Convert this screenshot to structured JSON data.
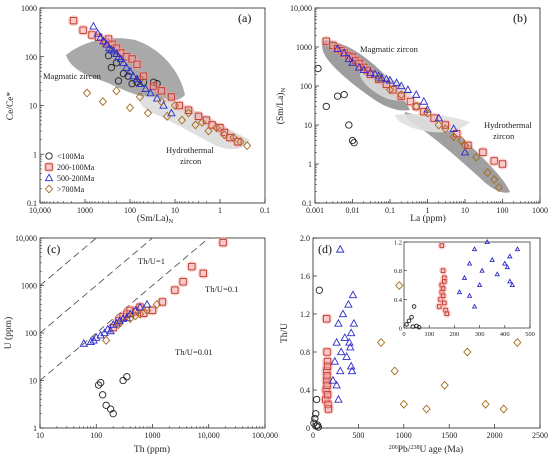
{
  "series_styles": {
    "lt100": {
      "legend": "<100Ma",
      "marker": "circle",
      "color": "#222222"
    },
    "s200_100": {
      "legend": "200-100Ma",
      "marker": "square",
      "color": "#c0392b"
    },
    "s500_200": {
      "legend": "500-200Ma",
      "marker": "triangle",
      "color": "#2c2cc8"
    },
    "gt700": {
      "legend": ">700Ma",
      "marker": "diamond",
      "color": "#a8691c"
    }
  },
  "colors": {
    "halo": "#f6a3a3",
    "field_dark": "#8c8c8c",
    "field_light": "#d8d8d8"
  },
  "chart_data": [
    {
      "panel": "a",
      "type": "scatter",
      "xlabel": "(Sm/La)N",
      "ylabel": "Ce/Ce*",
      "x_scale": "log",
      "y_scale": "log",
      "x_reversed": true,
      "xlim": [
        10000,
        0.1
      ],
      "ylim": [
        0.1,
        1000
      ],
      "x_ticks": [
        "10,000",
        "1000",
        "100",
        "10",
        "1",
        "0.1"
      ],
      "y_ticks": [
        "0.1",
        "1",
        "10",
        "100",
        "1000"
      ],
      "grid": false,
      "legend_position": "bottom-left",
      "annotations": [
        "Magmatic zircon",
        "Hydrothermal zircon"
      ],
      "series": [
        {
          "key": "lt100",
          "name": "<100Ma",
          "x": [
            300,
            260,
            200,
            140,
            90,
            70,
            50,
            30,
            25,
            60,
            110,
            180
          ],
          "y": [
            105,
            60,
            75,
            45,
            28,
            30,
            30,
            30,
            28,
            35,
            40,
            32
          ]
        },
        {
          "key": "s200_100",
          "name": "200-100Ma",
          "x": [
            1800,
            1100,
            700,
            500,
            350,
            300,
            250,
            200,
            160,
            120,
            90,
            70,
            50,
            30,
            20,
            12,
            8,
            5,
            3,
            2,
            1.5,
            1,
            0.8,
            0.6,
            0.4
          ],
          "y": [
            550,
            350,
            280,
            250,
            200,
            230,
            180,
            150,
            120,
            100,
            90,
            70,
            40,
            25,
            20,
            15,
            10,
            8,
            6,
            5,
            4,
            3.5,
            2.8,
            2.2,
            1.8
          ]
        },
        {
          "key": "s500_200",
          "name": "500-200Ma",
          "x": [
            650,
            520,
            450,
            390,
            330,
            290,
            260,
            230,
            200,
            180,
            160,
            140,
            120,
            100,
            85,
            70,
            60,
            45,
            35,
            25,
            18,
            12
          ],
          "y": [
            420,
            300,
            250,
            210,
            180,
            150,
            140,
            130,
            115,
            100,
            90,
            75,
            60,
            50,
            40,
            35,
            28,
            22,
            18,
            14,
            10,
            7
          ]
        },
        {
          "key": "gt700",
          "name": ">700Ma",
          "x": [
            900,
            400,
            200,
            100,
            60,
            40,
            20,
            15,
            10,
            7,
            5,
            3.5,
            2.5,
            1.8,
            1.2,
            0.8,
            0.5,
            0.35,
            0.25
          ],
          "y": [
            18,
            12,
            20,
            9,
            15,
            7,
            12,
            6,
            10,
            5,
            7,
            4,
            4.5,
            3,
            3.5,
            2.5,
            2.2,
            1.8,
            1.5
          ]
        }
      ]
    },
    {
      "panel": "b",
      "type": "scatter",
      "xlabel": "La (ppm)",
      "ylabel": "(Sm/La)N",
      "x_scale": "log",
      "y_scale": "log",
      "xlim": [
        0.001,
        1000
      ],
      "ylim": [
        0.1,
        10000
      ],
      "x_ticks": [
        "0.001",
        "0.01",
        "0.1",
        "1",
        "10",
        "100",
        "1000"
      ],
      "y_ticks": [
        "0.1",
        "1",
        "10",
        "100",
        "1000",
        "10,000"
      ],
      "grid": false,
      "annotations": [
        "Magmatic zircon",
        "Hydrothermal zircon"
      ],
      "series": [
        {
          "key": "lt100",
          "name": "<100Ma",
          "x": [
            0.0012,
            0.002,
            0.004,
            0.006,
            0.008,
            0.01,
            0.011
          ],
          "y": [
            280,
            30,
            55,
            60,
            10,
            4,
            3.5
          ]
        },
        {
          "key": "s200_100",
          "name": "200-100Ma",
          "x": [
            0.002,
            0.003,
            0.004,
            0.005,
            0.006,
            0.008,
            0.01,
            0.012,
            0.015,
            0.02,
            0.025,
            0.03,
            0.05,
            0.08,
            0.12,
            0.2,
            0.35,
            0.5,
            0.8,
            1.5,
            3,
            6,
            12,
            30,
            60,
            100
          ],
          "y": [
            1400,
            1100,
            900,
            800,
            700,
            600,
            550,
            450,
            380,
            300,
            250,
            200,
            150,
            110,
            80,
            55,
            40,
            30,
            22,
            15,
            10,
            6,
            3,
            2,
            1.2,
            1
          ]
        },
        {
          "key": "s500_200",
          "name": "500-200Ma",
          "x": [
            0.004,
            0.006,
            0.008,
            0.01,
            0.015,
            0.02,
            0.03,
            0.04,
            0.05,
            0.06,
            0.08,
            0.1,
            0.15,
            0.2,
            0.3,
            0.5,
            0.8,
            1,
            2,
            5,
            10
          ],
          "y": [
            900,
            700,
            500,
            400,
            300,
            260,
            220,
            200,
            180,
            160,
            150,
            140,
            120,
            100,
            80,
            60,
            40,
            25,
            15,
            8,
            2
          ]
        },
        {
          "key": "gt700",
          "name": ">700Ma",
          "x": [
            0.05,
            0.1,
            0.2,
            0.5,
            1,
            2,
            3,
            5,
            8,
            10,
            20,
            40,
            60,
            80
          ],
          "y": [
            150,
            80,
            60,
            30,
            20,
            10,
            8,
            5,
            4,
            3,
            1.5,
            0.6,
            0.4,
            0.25
          ]
        }
      ]
    },
    {
      "panel": "c",
      "type": "scatter",
      "xlabel": "Th (ppm)",
      "ylabel": "U (ppm)",
      "x_scale": "log",
      "y_scale": "log",
      "xlim": [
        10,
        100000
      ],
      "ylim": [
        1,
        10000
      ],
      "x_ticks": [
        "10",
        "100",
        "1000",
        "10,000",
        "100,000"
      ],
      "y_ticks": [
        "1",
        "10",
        "100",
        "1000",
        "10,000"
      ],
      "grid": false,
      "reference_lines": [
        {
          "label": "Th/U=1",
          "ratio": 1
        },
        {
          "label": "Th/U=0.1",
          "ratio": 0.1
        },
        {
          "label": "Th/U=0.01",
          "ratio": 0.01
        }
      ],
      "series": [
        {
          "key": "lt100",
          "name": "<100Ma",
          "x": [
            120,
            110,
            130,
            150,
            180,
            200,
            300,
            350
          ],
          "y": [
            9,
            8,
            5,
            3,
            2.5,
            2,
            10,
            12
          ]
        },
        {
          "key": "s200_100",
          "name": "200-100Ma",
          "x": [
            200,
            250,
            300,
            350,
            400,
            500,
            600,
            700,
            1000,
            1500,
            2500,
            3500,
            5000,
            8000,
            18000
          ],
          "y": [
            130,
            180,
            220,
            250,
            300,
            280,
            350,
            260,
            300,
            450,
            800,
            1200,
            2500,
            1800,
            8000
          ]
        },
        {
          "key": "s500_200",
          "name": "500-200Ma",
          "x": [
            60,
            80,
            90,
            100,
            120,
            140,
            160,
            180,
            200,
            230,
            260,
            300,
            350,
            400,
            500,
            600,
            800
          ],
          "y": [
            60,
            65,
            70,
            80,
            90,
            100,
            120,
            110,
            150,
            160,
            180,
            200,
            210,
            250,
            300,
            350,
            400
          ]
        },
        {
          "key": "gt700",
          "name": ">700Ma",
          "x": [
            150,
            250,
            400,
            500,
            600,
            800,
            1200
          ],
          "y": [
            70,
            150,
            200,
            230,
            250,
            300,
            400
          ]
        }
      ]
    },
    {
      "panel": "d",
      "type": "scatter",
      "xlabel": "206Pb/238U age (Ma)",
      "ylabel": "Th/U",
      "xlim": [
        0,
        2500
      ],
      "ylim": [
        0,
        2.0
      ],
      "x_ticks": [
        "0",
        "500",
        "1000",
        "1500",
        "2000",
        "2500"
      ],
      "y_ticks": [
        "0",
        "0.4",
        "0.8",
        "1.2",
        "1.6",
        "2.0"
      ],
      "grid": false,
      "inset": {
        "xlim": [
          0,
          500
        ],
        "ylim": [
          0,
          1.2
        ],
        "x_ticks": [
          "0",
          "100",
          "200",
          "300",
          "400",
          "500"
        ],
        "y_ticks": [
          "0",
          "0.4",
          "0.8",
          "1.2"
        ]
      },
      "series": [
        {
          "key": "lt100",
          "name": "<100Ma",
          "x": [
            10,
            20,
            30,
            35,
            40,
            50,
            60,
            70
          ],
          "y": [
            0.05,
            0.1,
            0.15,
            0.02,
            0.3,
            0.03,
            0.01,
            1.45
          ]
        },
        {
          "key": "s200_100",
          "name": "200-100Ma",
          "x": [
            140,
            145,
            150,
            150,
            155,
            155,
            160,
            160,
            165,
            170,
            150,
            155,
            160
          ],
          "y": [
            0.3,
            0.4,
            0.5,
            0.6,
            0.45,
            0.55,
            0.35,
            0.7,
            0.25,
            0.2,
            1.15,
            0.8,
            0.65
          ]
        },
        {
          "key": "s500_200",
          "name": "500-200Ma",
          "x": [
            220,
            240,
            260,
            280,
            300,
            310,
            330,
            350,
            370,
            390,
            410,
            420,
            430,
            440,
            450,
            300,
            280,
            260,
            420,
            400
          ],
          "y": [
            0.5,
            0.7,
            0.9,
            1.1,
            0.6,
            0.8,
            1.2,
            0.95,
            0.75,
            1.3,
            0.85,
            1.0,
            0.6,
            1.4,
            1.1,
            1.88,
            0.3,
            0.45,
            0.65,
            0.9
          ]
        },
        {
          "key": "gt700",
          "name": ">700Ma",
          "x": [
            750,
            900,
            950,
            1000,
            1250,
            1450,
            1650,
            1700,
            1900,
            2100,
            2250
          ],
          "y": [
            0.9,
            0.6,
            1.5,
            0.25,
            0.2,
            0.45,
            1.4,
            0.8,
            0.25,
            0.2,
            0.9
          ]
        }
      ]
    }
  ]
}
